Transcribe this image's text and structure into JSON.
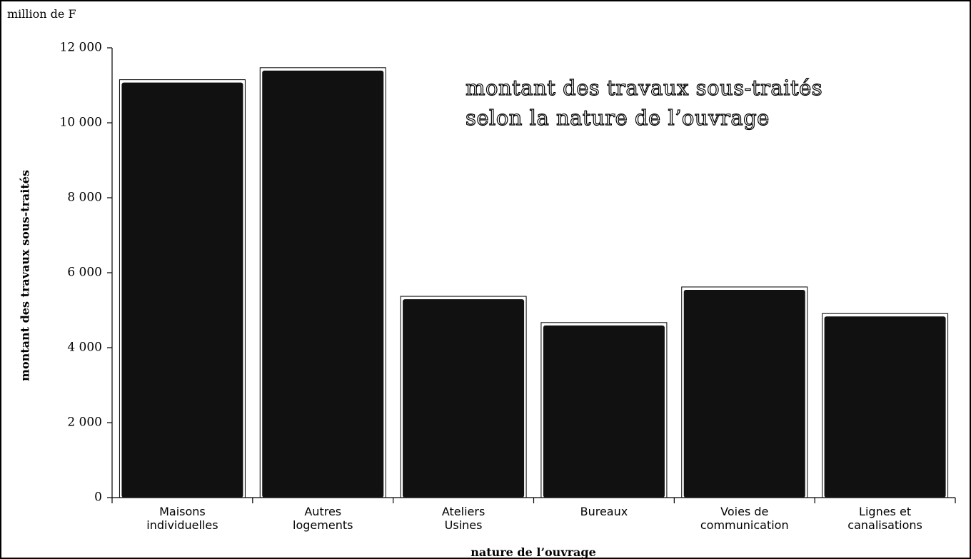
{
  "chart_data": {
    "type": "bar",
    "title": "montant des travaux sous-traités\nselon la nature de l’ouvrage",
    "unit_label": "million de F",
    "y_axis_label": "montant des travaux sous-traités",
    "x_axis_label": "nature de l’ouvrage",
    "categories": [
      "Maisons\nindividuelles",
      "Autres\nlogements",
      "Ateliers\nUsines",
      "Bureaux",
      "Voies de\ncommunication",
      "Lignes et\ncanalisations"
    ],
    "values": [
      11150,
      11470,
      5370,
      4670,
      5620,
      4910
    ],
    "color": "#111111",
    "ylim": [
      0,
      12000
    ],
    "yticks": [
      0,
      {
        "value": 2000,
        "label": "2 000"
      },
      {
        "value": 4000,
        "label": "4 000"
      },
      {
        "value": 6000,
        "label": "6 000"
      },
      {
        "value": 8000,
        "label": "8 000"
      },
      {
        "value": 10000,
        "label": "10 000"
      },
      {
        "value": 12000,
        "label": "12 000"
      }
    ],
    "grid": false
  }
}
